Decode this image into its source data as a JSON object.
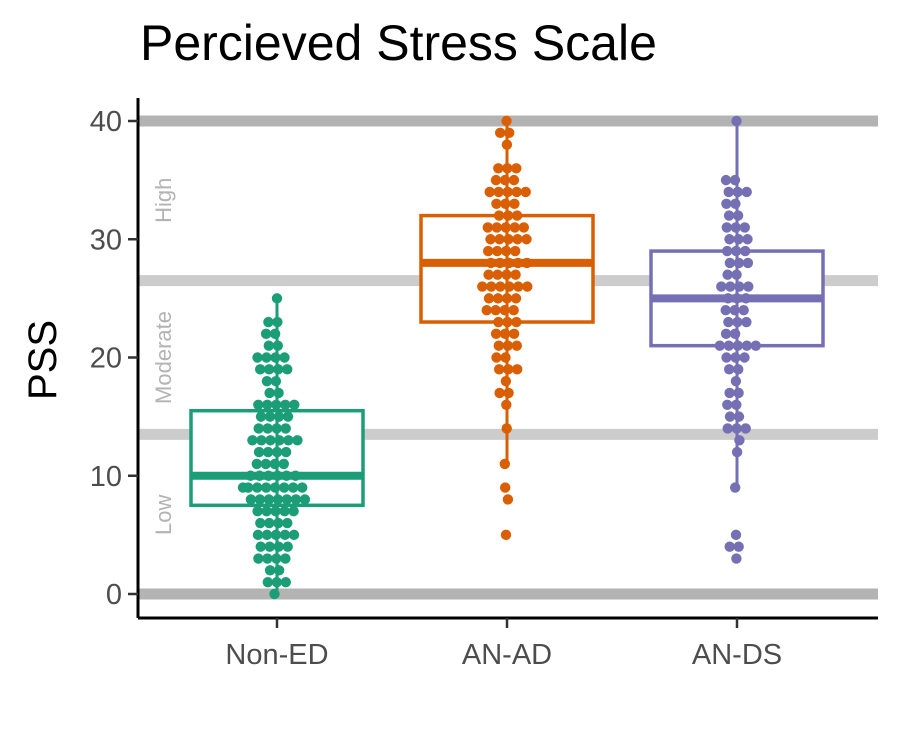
{
  "chart_data": {
    "type": "box",
    "title": "Percieved Stress Scale",
    "xlabel": "",
    "ylabel": "PSS",
    "ylim": [
      -2,
      41.5
    ],
    "yticks": [
      0,
      10,
      20,
      30,
      40
    ],
    "reference_lines": [
      {
        "y": 0,
        "color": "#b3b3b3"
      },
      {
        "y": 13.5,
        "color": "#cccccc"
      },
      {
        "y": 26.5,
        "color": "#cccccc"
      },
      {
        "y": 40,
        "color": "#b3b3b3"
      }
    ],
    "bands": [
      {
        "label": "Low",
        "y_mid": 6.7
      },
      {
        "label": "Moderate",
        "y_mid": 20
      },
      {
        "label": "High",
        "y_mid": 33.3
      }
    ],
    "categories": [
      "Non-ED",
      "AN-AD",
      "AN-DS"
    ],
    "series": [
      {
        "name": "Non-ED",
        "color": "#1b9e77",
        "box": {
          "whisker_low": 0,
          "q1": 7.5,
          "median": 10,
          "q3": 15.5,
          "whisker_high": 25
        },
        "points": [
          25,
          23,
          23,
          22,
          22,
          21,
          21,
          20,
          20,
          20,
          20,
          19,
          19,
          19,
          19,
          18,
          18,
          17,
          17,
          16,
          16,
          16,
          16,
          16,
          15,
          15,
          15,
          15,
          14,
          14,
          14,
          14,
          13,
          13,
          13,
          13,
          13,
          13,
          12,
          12,
          12,
          12,
          11,
          11,
          11,
          11,
          10,
          10,
          10,
          10,
          10,
          10,
          9,
          9,
          9,
          9,
          9,
          9,
          9,
          9,
          8,
          8,
          8,
          8,
          8,
          8,
          8,
          7,
          7,
          7,
          7,
          7,
          6,
          6,
          6,
          6,
          5,
          5,
          5,
          5,
          5,
          4,
          4,
          4,
          4,
          3,
          3,
          3,
          3,
          2,
          2,
          1,
          1,
          1,
          0
        ]
      },
      {
        "name": "AN-AD",
        "color": "#d95f02",
        "box": {
          "whisker_low": 11,
          "q1": 23,
          "median": 28,
          "q3": 32,
          "whisker_high": 40
        },
        "points": [
          40,
          39,
          39,
          38,
          36,
          36,
          36,
          35,
          35,
          35,
          34,
          34,
          34,
          34,
          34,
          33,
          33,
          33,
          32,
          32,
          32,
          31,
          31,
          31,
          31,
          31,
          30,
          30,
          30,
          30,
          30,
          29,
          29,
          29,
          29,
          28,
          28,
          28,
          28,
          28,
          27,
          27,
          27,
          27,
          26,
          26,
          26,
          26,
          26,
          26,
          25,
          25,
          25,
          25,
          24,
          24,
          24,
          24,
          23,
          23,
          23,
          22,
          22,
          22,
          21,
          21,
          21,
          20,
          20,
          19,
          19,
          19,
          18,
          17,
          17,
          16,
          14,
          11,
          9,
          8,
          5
        ]
      },
      {
        "name": "AN-DS",
        "color": "#7570b3",
        "box": {
          "whisker_low": 9,
          "q1": 21,
          "median": 25,
          "q3": 29,
          "whisker_high": 40
        },
        "points": [
          40,
          35,
          35,
          34,
          34,
          34,
          33,
          33,
          32,
          32,
          31,
          31,
          31,
          30,
          30,
          30,
          29,
          29,
          29,
          28,
          28,
          28,
          27,
          27,
          26,
          26,
          26,
          26,
          25,
          25,
          25,
          24,
          24,
          24,
          23,
          23,
          23,
          22,
          22,
          21,
          21,
          21,
          21,
          21,
          20,
          20,
          20,
          19,
          19,
          18,
          17,
          17,
          16,
          16,
          15,
          15,
          14,
          14,
          14,
          13,
          12,
          9,
          5,
          4,
          4,
          3
        ]
      }
    ]
  }
}
